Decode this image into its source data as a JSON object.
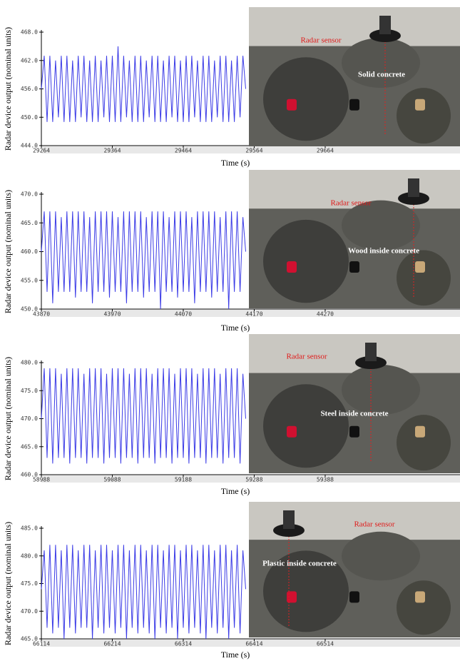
{
  "chart_data": [
    {
      "type": "line",
      "y_label": "Radar device output (nominal units)",
      "x_label": "Time (s)",
      "color": "#3b3be6",
      "annotations": [
        "Radar sensor",
        "Solid concrete"
      ],
      "xlim": [
        29264,
        29854
      ],
      "xticks": [
        29264,
        29364,
        29464,
        29564,
        29664
      ],
      "ylim": [
        444,
        468
      ],
      "yticks": [
        {
          "value": 444,
          "label": "444.0"
        },
        {
          "value": 450,
          "label": "450.0"
        },
        {
          "value": 456,
          "label": "456.0"
        },
        {
          "value": 462,
          "label": "462.0"
        },
        {
          "value": 468,
          "label": "468.0"
        }
      ],
      "x": [
        29264,
        29268,
        29272,
        29276,
        29280,
        29284,
        29288,
        29292,
        29296,
        29300,
        29304,
        29308,
        29312,
        29316,
        29320,
        29324,
        29328,
        29332,
        29336,
        29340,
        29344,
        29348,
        29352,
        29356,
        29360,
        29364,
        29368,
        29372,
        29376,
        29380,
        29384,
        29388,
        29392,
        29396,
        29400,
        29404,
        29408,
        29412,
        29416,
        29420,
        29424,
        29428,
        29432,
        29436,
        29440,
        29444,
        29448,
        29452,
        29456,
        29460,
        29464,
        29468,
        29472,
        29476,
        29480,
        29484,
        29488,
        29492,
        29496,
        29500,
        29504,
        29508,
        29512,
        29516,
        29520,
        29524,
        29528,
        29532,
        29536,
        29540,
        29544,
        29548,
        29552
      ],
      "values": [
        456,
        463,
        449,
        463,
        449,
        462,
        450,
        463,
        449,
        463,
        449,
        462,
        449,
        463,
        450,
        463,
        449,
        462,
        449,
        463,
        449,
        462,
        450,
        463,
        449,
        463,
        449,
        465,
        449,
        463,
        450,
        462,
        449,
        463,
        449,
        463,
        449,
        462,
        450,
        463,
        449,
        463,
        449,
        462,
        449,
        463,
        450,
        463,
        449,
        462,
        449,
        463,
        449,
        463,
        450,
        462,
        449,
        463,
        449,
        463,
        449,
        462,
        450,
        463,
        449,
        463,
        449,
        462,
        449,
        463,
        450,
        463,
        456
      ]
    },
    {
      "type": "line",
      "y_label": "Radar device output (nominal units)",
      "x_label": "Time (s)",
      "color": "#3b3be6",
      "annotations": [
        "Radar sensor",
        "Wood inside concrete"
      ],
      "xlim": [
        43870,
        44460
      ],
      "xticks": [
        43870,
        43970,
        44070,
        44170,
        44270
      ],
      "ylim": [
        450,
        470
      ],
      "yticks": [
        {
          "value": 450,
          "label": "450.0"
        },
        {
          "value": 455,
          "label": "455.0"
        },
        {
          "value": 460,
          "label": "460.0"
        },
        {
          "value": 465,
          "label": "465.0"
        },
        {
          "value": 470,
          "label": "470.0"
        }
      ],
      "x": [
        43870,
        43874,
        43878,
        43882,
        43886,
        43890,
        43894,
        43898,
        43902,
        43906,
        43910,
        43914,
        43918,
        43922,
        43926,
        43930,
        43934,
        43938,
        43942,
        43946,
        43950,
        43954,
        43958,
        43962,
        43966,
        43970,
        43974,
        43978,
        43982,
        43986,
        43990,
        43994,
        43998,
        44002,
        44006,
        44010,
        44014,
        44018,
        44022,
        44026,
        44030,
        44034,
        44038,
        44042,
        44046,
        44050,
        44054,
        44058,
        44062,
        44066,
        44070,
        44074,
        44078,
        44082,
        44086,
        44090,
        44094,
        44098,
        44102,
        44106,
        44110,
        44114,
        44118,
        44122,
        44126,
        44130,
        44134,
        44138,
        44142,
        44146,
        44150,
        44154,
        44158
      ],
      "values": [
        460,
        467,
        453,
        467,
        451,
        467,
        453,
        466,
        453,
        467,
        453,
        467,
        452,
        467,
        453,
        467,
        453,
        466,
        451,
        467,
        453,
        467,
        453,
        467,
        452,
        467,
        453,
        466,
        453,
        467,
        451,
        467,
        453,
        467,
        453,
        467,
        452,
        466,
        453,
        467,
        453,
        467,
        450,
        467,
        453,
        466,
        453,
        467,
        452,
        467,
        453,
        467,
        453,
        466,
        451,
        467,
        453,
        467,
        453,
        467,
        452,
        467,
        453,
        466,
        453,
        467,
        450,
        467,
        453,
        467,
        453,
        466,
        460
      ]
    },
    {
      "type": "line",
      "y_label": "Radar device output (nominal units)",
      "x_label": "Time (s)",
      "color": "#3b3be6",
      "annotations": [
        "Radar sensor",
        "Steel inside concrete"
      ],
      "xlim": [
        58988,
        59578
      ],
      "xticks": [
        58988,
        59088,
        59188,
        59288,
        59388
      ],
      "ylim": [
        460,
        480
      ],
      "yticks": [
        {
          "value": 460,
          "label": "460.0"
        },
        {
          "value": 465,
          "label": "465.0"
        },
        {
          "value": 470,
          "label": "470.0"
        },
        {
          "value": 475,
          "label": "475.0"
        },
        {
          "value": 480,
          "label": "480.0"
        }
      ],
      "x": [
        58988,
        58992,
        58996,
        59000,
        59004,
        59008,
        59012,
        59016,
        59020,
        59024,
        59028,
        59032,
        59036,
        59040,
        59044,
        59048,
        59052,
        59056,
        59060,
        59064,
        59068,
        59072,
        59076,
        59080,
        59084,
        59088,
        59092,
        59096,
        59100,
        59104,
        59108,
        59112,
        59116,
        59120,
        59124,
        59128,
        59132,
        59136,
        59140,
        59144,
        59148,
        59152,
        59156,
        59160,
        59164,
        59168,
        59172,
        59176,
        59180,
        59184,
        59188,
        59192,
        59196,
        59200,
        59204,
        59208,
        59212,
        59216,
        59220,
        59224,
        59228,
        59232,
        59236,
        59240,
        59244,
        59248,
        59252,
        59256,
        59260,
        59264,
        59268,
        59272,
        59276
      ],
      "values": [
        470,
        479,
        463,
        479,
        462,
        479,
        463,
        478,
        463,
        479,
        462,
        479,
        463,
        479,
        463,
        478,
        462,
        479,
        463,
        479,
        463,
        479,
        462,
        478,
        463,
        479,
        463,
        479,
        462,
        479,
        463,
        478,
        463,
        479,
        462,
        479,
        463,
        479,
        463,
        478,
        462,
        479,
        463,
        479,
        463,
        479,
        462,
        478,
        463,
        479,
        463,
        479,
        462,
        479,
        463,
        478,
        463,
        479,
        462,
        479,
        463,
        479,
        463,
        478,
        462,
        479,
        463,
        479,
        463,
        479,
        462,
        478,
        470
      ]
    },
    {
      "type": "line",
      "y_label": "Radar device output (nominal units)",
      "x_label": "Time (s)",
      "color": "#3b3be6",
      "annotations": [
        "Radar sensor",
        "Plastic inside concrete"
      ],
      "xlim": [
        66114,
        66704
      ],
      "xticks": [
        66114,
        66214,
        66314,
        66414,
        66514
      ],
      "ylim": [
        465,
        485
      ],
      "yticks": [
        {
          "value": 465,
          "label": "465.0"
        },
        {
          "value": 470,
          "label": "470.0"
        },
        {
          "value": 475,
          "label": "475.0"
        },
        {
          "value": 480,
          "label": "480.0"
        },
        {
          "value": 485,
          "label": "485.0"
        }
      ],
      "x": [
        66114,
        66118,
        66122,
        66126,
        66130,
        66134,
        66138,
        66142,
        66146,
        66150,
        66154,
        66158,
        66162,
        66166,
        66170,
        66174,
        66178,
        66182,
        66186,
        66190,
        66194,
        66198,
        66202,
        66206,
        66210,
        66214,
        66218,
        66222,
        66226,
        66230,
        66234,
        66238,
        66242,
        66246,
        66250,
        66254,
        66258,
        66262,
        66266,
        66270,
        66274,
        66278,
        66282,
        66286,
        66290,
        66294,
        66298,
        66302,
        66306,
        66310,
        66314,
        66318,
        66322,
        66326,
        66330,
        66334,
        66338,
        66342,
        66346,
        66350,
        66354,
        66358,
        66362,
        66366,
        66370,
        66374,
        66378,
        66382,
        66386,
        66390,
        66394,
        66398,
        66402
      ],
      "values": [
        474,
        481,
        467,
        482,
        466,
        482,
        467,
        481,
        465,
        482,
        467,
        482,
        466,
        481,
        467,
        482,
        467,
        482,
        465,
        481,
        467,
        482,
        466,
        482,
        467,
        481,
        466,
        482,
        467,
        482,
        465,
        481,
        467,
        482,
        466,
        482,
        467,
        481,
        466,
        482,
        465,
        482,
        467,
        481,
        466,
        482,
        467,
        482,
        465,
        481,
        467,
        482,
        466,
        482,
        467,
        481,
        466,
        482,
        465,
        482,
        467,
        481,
        466,
        482,
        467,
        482,
        465,
        481,
        467,
        482,
        466,
        481,
        474
      ]
    }
  ]
}
